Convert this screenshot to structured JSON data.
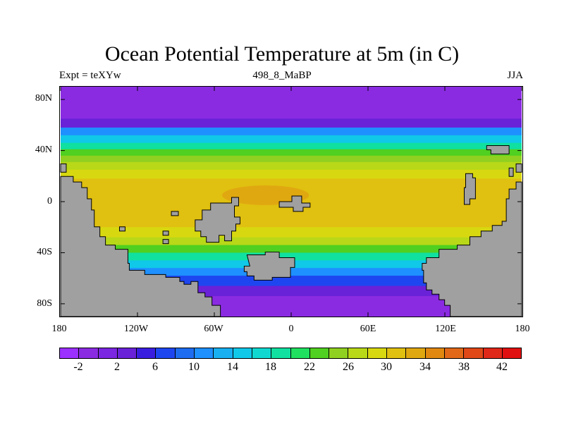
{
  "figure": {
    "title": "Ocean Potential Temperature at 5m (in C)",
    "left_subtitle": "Expt = teXYw",
    "center_subtitle": "498_8_MaBP",
    "right_subtitle": "JJA"
  },
  "map": {
    "lat_ticks": [
      {
        "value": 80,
        "label": "80N"
      },
      {
        "value": 40,
        "label": "40N"
      },
      {
        "value": 0,
        "label": "0"
      },
      {
        "value": -40,
        "label": "40S"
      },
      {
        "value": -80,
        "label": "80S"
      }
    ],
    "lon_ticks": [
      {
        "value": -180,
        "label": "180"
      },
      {
        "value": -120,
        "label": "120W"
      },
      {
        "value": -60,
        "label": "60W"
      },
      {
        "value": 0,
        "label": "0"
      },
      {
        "value": 60,
        "label": "60E"
      },
      {
        "value": 120,
        "label": "120E"
      },
      {
        "value": 180,
        "label": "180"
      }
    ],
    "lat_range": [
      -90,
      90
    ],
    "lon_range": [
      -180,
      180
    ],
    "land_color": "#a0a0a0",
    "ocean_temperature_bands_by_latitude": [
      {
        "lat_from": 90,
        "lat_to": 65,
        "temp_c": -2
      },
      {
        "lat_from": 65,
        "lat_to": 58,
        "temp_c": 2
      },
      {
        "lat_from": 58,
        "lat_to": 52,
        "temp_c": 10
      },
      {
        "lat_from": 52,
        "lat_to": 46,
        "temp_c": 14
      },
      {
        "lat_from": 46,
        "lat_to": 41,
        "temp_c": 18
      },
      {
        "lat_from": 41,
        "lat_to": 36,
        "temp_c": 22
      },
      {
        "lat_from": 36,
        "lat_to": 31,
        "temp_c": 24
      },
      {
        "lat_from": 31,
        "lat_to": 25,
        "temp_c": 26
      },
      {
        "lat_from": 25,
        "lat_to": 18,
        "temp_c": 28
      },
      {
        "lat_from": 18,
        "lat_to": -20,
        "temp_c": 30
      },
      {
        "lat_from": -20,
        "lat_to": -28,
        "temp_c": 28
      },
      {
        "lat_from": -28,
        "lat_to": -34,
        "temp_c": 26
      },
      {
        "lat_from": -34,
        "lat_to": -40,
        "temp_c": 22
      },
      {
        "lat_from": -40,
        "lat_to": -46,
        "temp_c": 18
      },
      {
        "lat_from": -46,
        "lat_to": -52,
        "temp_c": 14
      },
      {
        "lat_from": -52,
        "lat_to": -58,
        "temp_c": 10
      },
      {
        "lat_from": -58,
        "lat_to": -66,
        "temp_c": 6
      },
      {
        "lat_from": -66,
        "lat_to": -74,
        "temp_c": 2
      },
      {
        "lat_from": -74,
        "lat_to": -90,
        "temp_c": -2
      }
    ],
    "warm_pool": {
      "lon_center": -20,
      "lat_center": 5,
      "temp_c": 32
    }
  },
  "colorbar": {
    "labels": [
      "-2",
      "2",
      "6",
      "10",
      "14",
      "18",
      "22",
      "26",
      "30",
      "34",
      "38",
      "42"
    ],
    "colors": [
      "#9b30ff",
      "#8a2be2",
      "#7b26e0",
      "#6a22d8",
      "#3a1ee0",
      "#1e46f0",
      "#1e6cf0",
      "#1e90ff",
      "#18b0f0",
      "#10c8e8",
      "#10d8d0",
      "#10e0a0",
      "#20e060",
      "#50d020",
      "#90d020",
      "#b8d818",
      "#d8d810",
      "#e0c010",
      "#e0a810",
      "#e08810",
      "#e06818",
      "#e04818",
      "#e02818",
      "#e01010"
    ]
  }
}
